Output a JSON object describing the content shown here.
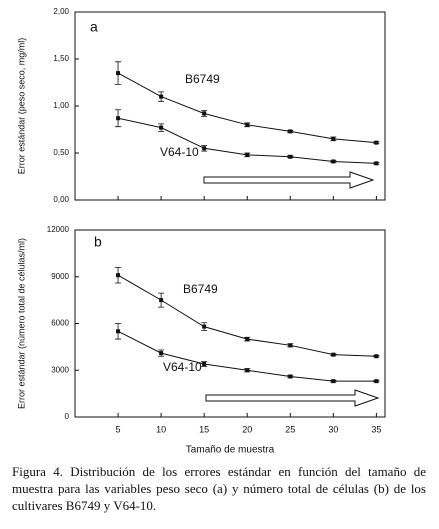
{
  "chart_data": [
    {
      "type": "line",
      "panel_label": "a",
      "y_label": "Error estándar (peso seco, mg/ml)",
      "x": [
        5,
        10,
        15,
        20,
        25,
        30,
        35
      ],
      "xlim": [
        0,
        36
      ],
      "ylim": [
        0,
        2
      ],
      "yticks": [
        {
          "value": 0,
          "label": "0,00"
        },
        {
          "value": 0.5,
          "label": "0,50"
        },
        {
          "value": 1,
          "label": "1,00"
        },
        {
          "value": 1.5,
          "label": "1,50"
        },
        {
          "value": 2,
          "label": "2,00"
        }
      ],
      "series": [
        {
          "name": "B6749",
          "color": "#111111",
          "values": [
            1.35,
            1.1,
            0.92,
            0.8,
            0.73,
            0.65,
            0.61
          ],
          "errors": [
            0.12,
            0.05,
            0.03,
            0.02,
            0.01,
            0.02,
            0.01
          ]
        },
        {
          "name": "V64-10",
          "color": "#111111",
          "values": [
            0.87,
            0.77,
            0.55,
            0.48,
            0.46,
            0.41,
            0.39
          ],
          "errors": [
            0.09,
            0.04,
            0.03,
            0.02,
            0.01,
            0.01,
            0.01
          ]
        }
      ]
    },
    {
      "type": "line",
      "panel_label": "b",
      "y_label": "Error estándar (número total de células/ml)",
      "x_label": "Tamaño de muestra",
      "x": [
        5,
        10,
        15,
        20,
        25,
        30,
        35
      ],
      "xlim": [
        0,
        36
      ],
      "xticks": [
        5,
        10,
        15,
        20,
        25,
        30,
        35
      ],
      "ylim": [
        0,
        12000
      ],
      "yticks": [
        0,
        3000,
        6000,
        9000,
        12000
      ],
      "series": [
        {
          "name": "B6749",
          "color": "#111111",
          "values": [
            9100,
            7500,
            5800,
            5000,
            4600,
            4000,
            3900
          ],
          "errors": [
            500,
            450,
            250,
            120,
            100,
            60,
            50
          ]
        },
        {
          "name": "V64-10",
          "color": "#111111",
          "values": [
            5500,
            4100,
            3400,
            3000,
            2600,
            2300,
            2300
          ],
          "errors": [
            500,
            200,
            150,
            100,
            80,
            60,
            50
          ]
        }
      ]
    }
  ],
  "caption": "Figura 4. Distribución de los errores estándar en función del tamaño de muestra para las variables peso seco (a) y número total de células (b) de los cultivares B6749 y V64-10."
}
